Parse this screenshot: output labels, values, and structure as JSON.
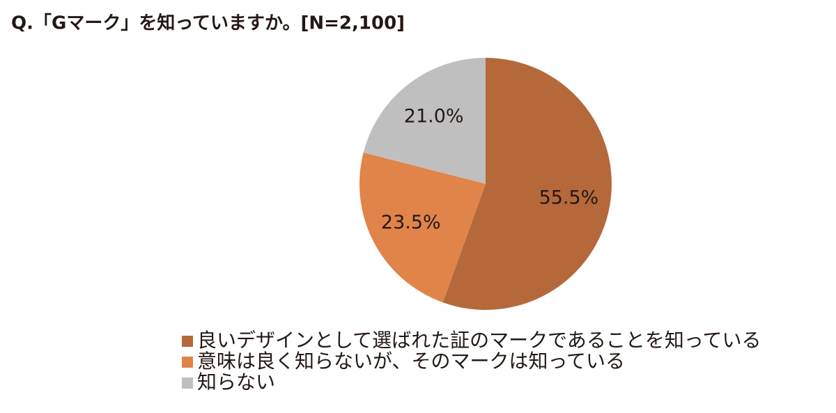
{
  "chart_data": {
    "type": "pie",
    "title": "Q.「Gマーク」を知っていますか。[N=2,100]",
    "categories": [
      "良いデザインとして選ばれた証のマークであることを知っている",
      "意味は良く知らないが、そのマークは知っている",
      "知らない"
    ],
    "values": [
      55.5,
      23.5,
      21.0
    ],
    "value_labels": [
      "55.5%",
      "23.5%",
      "21.0%"
    ],
    "colors": [
      "#b5693a",
      "#e0844a",
      "#bfbfbf"
    ]
  }
}
